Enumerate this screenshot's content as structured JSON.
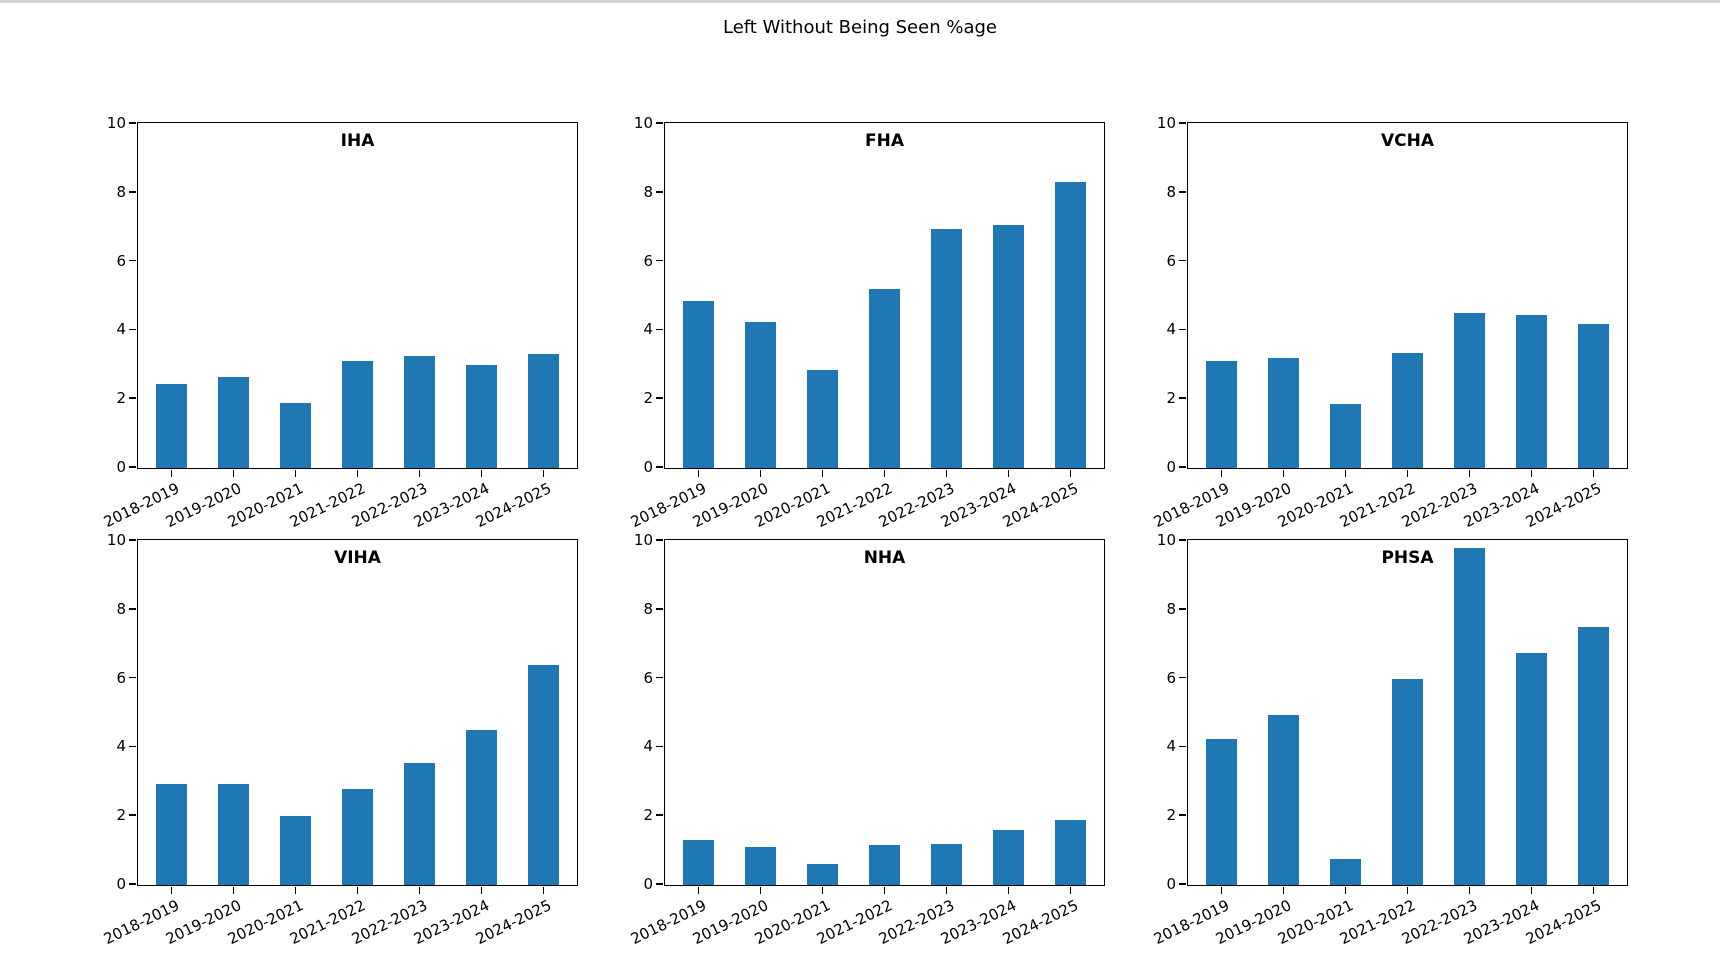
{
  "figure": {
    "title": "Left Without Being Seen %age",
    "bar_color": "#1f77b4"
  },
  "chart_data": [
    {
      "type": "bar",
      "title": "IHA",
      "categories": [
        "2018-2019",
        "2019-2020",
        "2020-2021",
        "2021-2022",
        "2022-2023",
        "2023-2024",
        "2024-2025"
      ],
      "values": [
        2.45,
        2.65,
        1.9,
        3.1,
        3.25,
        3.0,
        3.3
      ],
      "xlabel": "",
      "ylabel": "",
      "ylim": [
        0,
        10
      ],
      "yticks": [
        0,
        2,
        4,
        6,
        8,
        10
      ]
    },
    {
      "type": "bar",
      "title": "FHA",
      "categories": [
        "2018-2019",
        "2019-2020",
        "2020-2021",
        "2021-2022",
        "2022-2023",
        "2023-2024",
        "2024-2025"
      ],
      "values": [
        4.85,
        4.25,
        2.85,
        5.2,
        6.95,
        7.05,
        8.3
      ],
      "xlabel": "",
      "ylabel": "",
      "ylim": [
        0,
        10
      ],
      "yticks": [
        0,
        2,
        4,
        6,
        8,
        10
      ]
    },
    {
      "type": "bar",
      "title": "VCHA",
      "categories": [
        "2018-2019",
        "2019-2020",
        "2020-2021",
        "2021-2022",
        "2022-2023",
        "2023-2024",
        "2024-2025"
      ],
      "values": [
        3.1,
        3.2,
        1.85,
        3.35,
        4.5,
        4.45,
        4.2
      ],
      "xlabel": "",
      "ylabel": "",
      "ylim": [
        0,
        10
      ],
      "yticks": [
        0,
        2,
        4,
        6,
        8,
        10
      ]
    },
    {
      "type": "bar",
      "title": "VIHA",
      "categories": [
        "2018-2019",
        "2019-2020",
        "2020-2021",
        "2021-2022",
        "2022-2023",
        "2023-2024",
        "2024-2025"
      ],
      "values": [
        2.95,
        2.95,
        2.0,
        2.8,
        3.55,
        4.5,
        6.4
      ],
      "xlabel": "",
      "ylabel": "",
      "ylim": [
        0,
        10
      ],
      "yticks": [
        0,
        2,
        4,
        6,
        8,
        10
      ]
    },
    {
      "type": "bar",
      "title": "NHA",
      "categories": [
        "2018-2019",
        "2019-2020",
        "2020-2021",
        "2021-2022",
        "2022-2023",
        "2023-2024",
        "2024-2025"
      ],
      "values": [
        1.3,
        1.1,
        0.6,
        1.15,
        1.2,
        1.6,
        1.9
      ],
      "xlabel": "",
      "ylabel": "",
      "ylim": [
        0,
        10
      ],
      "yticks": [
        0,
        2,
        4,
        6,
        8,
        10
      ]
    },
    {
      "type": "bar",
      "title": "PHSA",
      "categories": [
        "2018-2019",
        "2019-2020",
        "2020-2021",
        "2021-2022",
        "2022-2023",
        "2023-2024",
        "2024-2025"
      ],
      "values": [
        4.25,
        4.95,
        0.75,
        6.0,
        9.8,
        6.75,
        7.5
      ],
      "xlabel": "",
      "ylabel": "",
      "ylim": [
        0,
        10
      ],
      "yticks": [
        0,
        2,
        4,
        6,
        8,
        10
      ]
    }
  ]
}
